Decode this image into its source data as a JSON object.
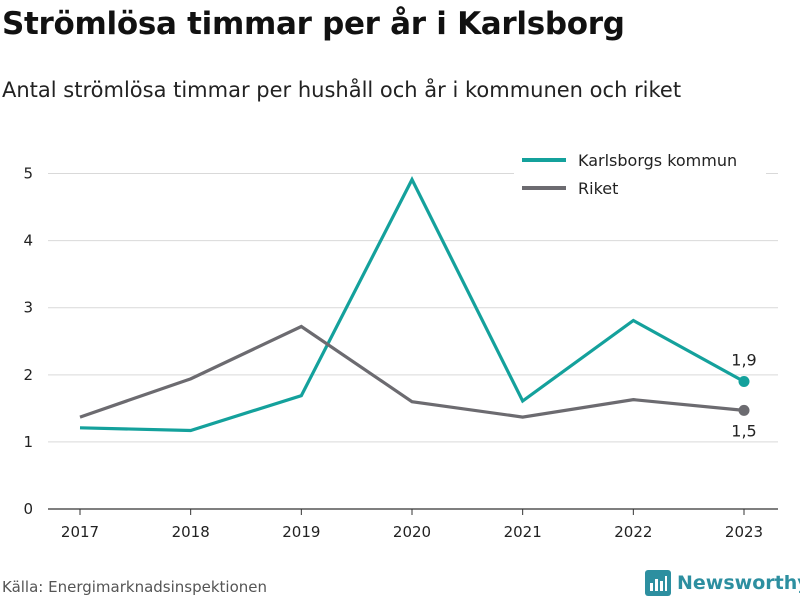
{
  "header": {
    "title": "Strömlösa timmar per år i Karlsborg",
    "subtitle": "Antal strömlösa timmar per hushåll och år i kommunen och riket"
  },
  "footer": {
    "source": "Källa: Energimarknadsinspektionen",
    "brand": "Newsworthy",
    "brand_icon": "bar-chart-logo-icon",
    "brand_color": "#2d8fa0"
  },
  "chart_data": {
    "type": "line",
    "title": "Strömlösa timmar per år i Karlsborg",
    "subtitle": "Antal strömlösa timmar per hushåll och år i kommunen och riket",
    "xlabel": "",
    "ylabel": "",
    "categories": [
      "2017",
      "2018",
      "2019",
      "2020",
      "2021",
      "2022",
      "2023"
    ],
    "yticks": [
      "0",
      "1",
      "2",
      "3",
      "4",
      "5"
    ],
    "ylim": [
      0,
      5.5
    ],
    "grid": true,
    "legend_position": "top-right",
    "series": [
      {
        "name": "Karlsborgs kommun",
        "color": "#14a19c",
        "values": [
          1.21,
          1.17,
          1.69,
          4.91,
          1.61,
          2.81,
          1.9
        ],
        "end_label": "1,9"
      },
      {
        "name": "Riket",
        "color": "#6c6b70",
        "values": [
          1.37,
          1.94,
          2.72,
          1.6,
          1.37,
          1.63,
          1.47
        ],
        "end_label": "1,5"
      }
    ]
  }
}
